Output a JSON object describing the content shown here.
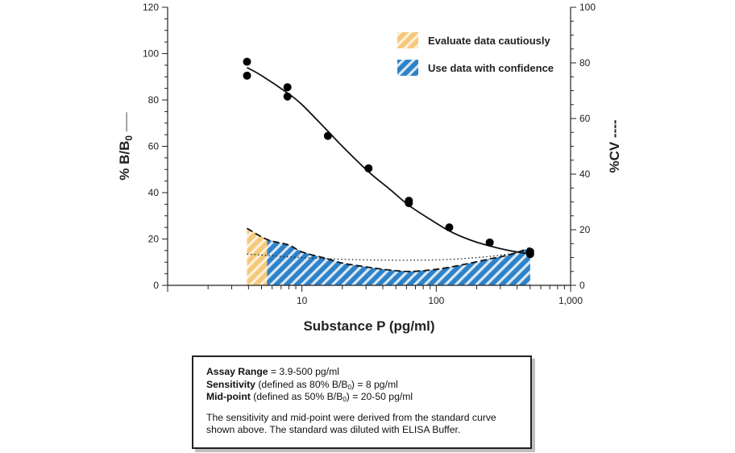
{
  "chart_data": {
    "type": "line",
    "title": "",
    "xlabel": "Substance P (pg/ml)",
    "ylabel": "% B/B0 ——",
    "ylabel_main": "% B/B",
    "ylabel_sub": "0",
    "ylabel_suffix": "——",
    "y2label": "%CV ----",
    "xscale": "log",
    "xlim": [
      1,
      1000
    ],
    "ylim": [
      0,
      120
    ],
    "y2lim": [
      0,
      100
    ],
    "x_ticks": [
      {
        "value": 10,
        "label": "10"
      },
      {
        "value": 100,
        "label": "100"
      },
      {
        "value": 1000,
        "label": "1,000"
      }
    ],
    "y_ticks": [
      {
        "value": 0,
        "label": "0"
      },
      {
        "value": 20,
        "label": "20"
      },
      {
        "value": 40,
        "label": "40"
      },
      {
        "value": 60,
        "label": "60"
      },
      {
        "value": 80,
        "label": "80"
      },
      {
        "value": 100,
        "label": "100"
      },
      {
        "value": 120,
        "label": "120"
      }
    ],
    "y2_ticks": [
      {
        "value": 0,
        "label": "0"
      },
      {
        "value": 20,
        "label": "20"
      },
      {
        "value": 40,
        "label": "40"
      },
      {
        "value": 60,
        "label": "60"
      },
      {
        "value": 80,
        "label": "80"
      },
      {
        "value": 100,
        "label": "100"
      }
    ],
    "series": [
      {
        "name": "%B/B0 standard points",
        "kind": "scatter",
        "x": [
          3.9,
          3.9,
          7.8,
          7.8,
          15.6,
          31.3,
          62.5,
          62.5,
          125,
          250,
          500,
          500
        ],
        "y": [
          96.5,
          90.5,
          85.5,
          81.5,
          64.5,
          50.5,
          36.5,
          35.5,
          25,
          18.5,
          14.5,
          13.5
        ]
      },
      {
        "name": "%B/B0 fitted curve",
        "kind": "line",
        "x": [
          3.9,
          5,
          7.8,
          10,
          15.6,
          20,
          31.3,
          45,
          62.5,
          90,
          125,
          180,
          250,
          350,
          500
        ],
        "y": [
          94,
          90.5,
          83,
          78,
          66.5,
          60,
          49,
          41.5,
          34.5,
          28.5,
          23.5,
          19.5,
          17,
          15,
          13.5
        ]
      },
      {
        "name": "%CV",
        "kind": "dashed-line",
        "axis": "y2",
        "x": [
          3.9,
          5.5,
          8,
          10,
          15.6,
          20,
          31.3,
          45,
          62.5,
          90,
          125,
          180,
          250,
          350,
          500
        ],
        "y": [
          20.5,
          16.5,
          14.5,
          12,
          9.5,
          8,
          6.5,
          5.5,
          5,
          5.5,
          6.5,
          8,
          9.5,
          11,
          13.5
        ]
      },
      {
        "name": "%B/B0 secondary fit",
        "kind": "dotted-line",
        "x": [
          3.9,
          10,
          30,
          100,
          250,
          500
        ],
        "y": [
          13.5,
          12,
          11,
          11,
          12.5,
          15
        ]
      }
    ],
    "regions": [
      {
        "name": "Evaluate data cautiously",
        "x_range": [
          3.9,
          5.5
        ],
        "color": "#f5c87a",
        "pattern": "hatch"
      },
      {
        "name": "Use data with confidence",
        "x_range": [
          5.5,
          500
        ],
        "color": "#2e82c8",
        "pattern": "hatch"
      }
    ],
    "legend": {
      "position": "top-right",
      "entries": [
        "Evaluate data cautiously",
        "Use data with confidence"
      ]
    },
    "grid": false
  },
  "colors": {
    "caution": "#f5c87a",
    "confidence": "#2e82c8",
    "line": "#111111"
  },
  "info_box": {
    "assay_range_label": "Assay Range",
    "assay_range_value": " = 3.9-500 pg/ml",
    "sensitivity_label": "Sensitivity",
    "sensitivity_pre": " (defined as 80% B/B",
    "sensitivity_sub": "0",
    "sensitivity_post": ") = 8 pg/ml",
    "midpoint_label": "Mid-point",
    "midpoint_pre": " (defined as 50% B/B",
    "midpoint_sub": "0",
    "midpoint_post": ") = 20-50 pg/ml",
    "note": "The sensitivity and mid-point were derived from the standard curve shown above. The standard was diluted with ELISA Buffer."
  }
}
